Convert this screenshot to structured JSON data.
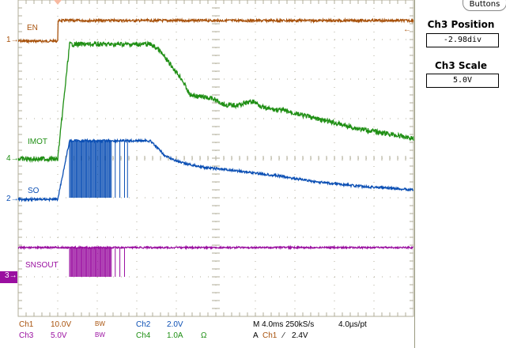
{
  "colors": {
    "ch1": "#a8520c",
    "ch2": "#0b4fb4",
    "ch3": "#9a0fa0",
    "ch4": "#1f8f14",
    "grid": "#b0ae98"
  },
  "traces": {
    "ch1": "EN",
    "ch2": "SO",
    "ch3": "SNSOUT",
    "ch4": "IMOT"
  },
  "markers": {
    "ch1": "1",
    "ch2": "2",
    "ch3": "3",
    "ch4": "4"
  },
  "panel": {
    "buttons_label": "Buttons",
    "position_label": "Ch3 Position",
    "position_value": "-2.98div",
    "scale_label": "Ch3 Scale",
    "scale_value": "5.0V"
  },
  "status": {
    "ch1": "Ch1",
    "ch1_scale": "10.0V",
    "ch1_bw": "BW",
    "ch2": "Ch2",
    "ch2_scale": "2.0V",
    "ch3": "Ch3",
    "ch3_scale": "5.0V",
    "ch3_bw": "BW",
    "ch4": "Ch4",
    "ch4_scale": "1.0A",
    "ch4_unit": "Ω",
    "timebase": "M 4.0ms 250kS/s",
    "resolution": "4.0µs/pt",
    "trigger_prefix": "A",
    "trigger_source": "Ch1",
    "trigger_slope": "⁄",
    "trigger_level": "2.4V"
  }
}
